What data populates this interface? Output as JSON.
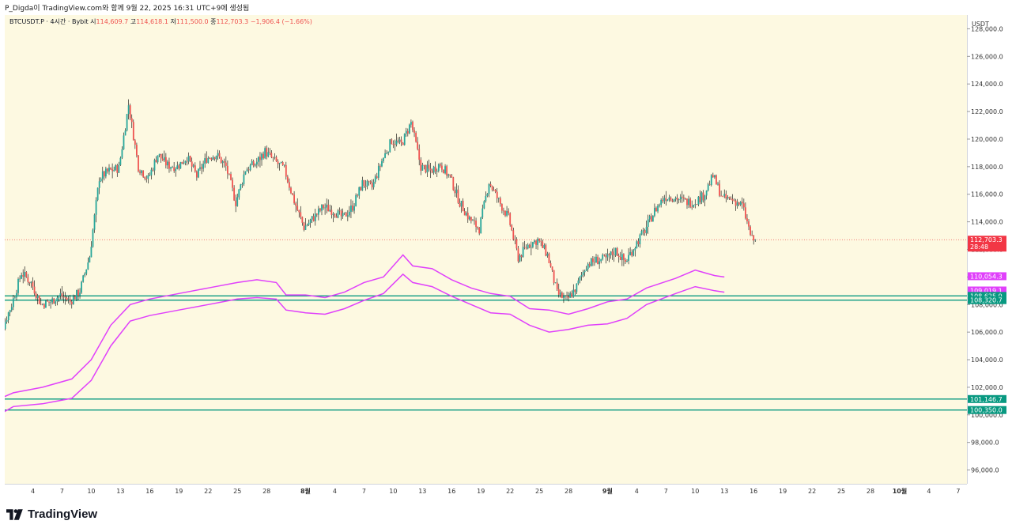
{
  "caption": "P_Digda이 TradingView.com와 함께 9월 22, 2025 16:31 UTC+9에 생성됨",
  "brand": {
    "logo_text": "TradingView",
    "logo_icon": "tradingview-logo-icon"
  },
  "colors": {
    "background": "#fdf9e1",
    "up": "#26a69a",
    "down": "#ef5350",
    "envelope": "#e040fb",
    "levels": "#089981",
    "price_tag": "#f23645"
  },
  "chart_data": {
    "type": "candlestick",
    "symbol": "BTCUSDT.P",
    "timeframe": "4시간",
    "exchange": "Bybit",
    "ohlc_legend": {
      "open_label": "시",
      "open": "114,609.7",
      "high_label": "고",
      "high": "114,618.1",
      "low_label": "저",
      "low": "111,500.0",
      "close_label": "종",
      "close": "112,703.3",
      "change": "−1,906.4 (−1.66%)"
    },
    "currency_label": "USDT",
    "ylim": [
      95000,
      129000
    ],
    "y_ticks": [
      "128,000.0",
      "126,000.0",
      "124,000.0",
      "122,000.0",
      "120,000.0",
      "118,000.0",
      "116,000.0",
      "114,000.0",
      "112,000.0",
      "110,000.0",
      "108,000.0",
      "106,000.0",
      "104,000.0",
      "102,000.0",
      "100,000.0",
      "98,000.0",
      "96,000.0"
    ],
    "x_ticks": [
      "4",
      "7",
      "10",
      "13",
      "16",
      "19",
      "22",
      "25",
      "28",
      "8월",
      "4",
      "7",
      "10",
      "13",
      "16",
      "19",
      "22",
      "25",
      "28",
      "9월",
      "4",
      "7",
      "10",
      "13",
      "16",
      "19",
      "22",
      "25",
      "28",
      "10월",
      "4",
      "7"
    ],
    "x_tick_days": [
      4,
      7,
      10,
      13,
      16,
      19,
      22,
      25,
      28,
      32,
      35,
      38,
      41,
      44,
      47,
      50,
      53,
      56,
      59,
      63,
      66,
      69,
      72,
      75,
      78,
      81,
      84,
      87,
      90,
      93,
      96,
      99
    ],
    "price_path": [
      [
        0,
        108300
      ],
      [
        1,
        106200
      ],
      [
        2,
        108000
      ],
      [
        3,
        110300
      ],
      [
        4,
        109600
      ],
      [
        5,
        108000
      ],
      [
        6,
        108200
      ],
      [
        7,
        108700
      ],
      [
        8,
        108200
      ],
      [
        9,
        109000
      ],
      [
        10,
        111500
      ],
      [
        11,
        117200
      ],
      [
        12,
        117700
      ],
      [
        13,
        117900
      ],
      [
        14,
        122500
      ],
      [
        15,
        118000
      ],
      [
        16,
        117100
      ],
      [
        17,
        118900
      ],
      [
        18,
        118100
      ],
      [
        19,
        118000
      ],
      [
        20,
        118700
      ],
      [
        21,
        117300
      ],
      [
        22,
        118600
      ],
      [
        23,
        118900
      ],
      [
        24,
        118000
      ],
      [
        25,
        115400
      ],
      [
        26,
        117800
      ],
      [
        27,
        118200
      ],
      [
        28,
        119100
      ],
      [
        29,
        118400
      ],
      [
        30,
        117800
      ],
      [
        31,
        115500
      ],
      [
        32,
        113600
      ],
      [
        33,
        114300
      ],
      [
        34,
        115100
      ],
      [
        35,
        114800
      ],
      [
        36,
        114300
      ],
      [
        37,
        115100
      ],
      [
        38,
        116800
      ],
      [
        39,
        116500
      ],
      [
        40,
        118400
      ],
      [
        41,
        119900
      ],
      [
        42,
        119600
      ],
      [
        43,
        121200
      ],
      [
        44,
        118000
      ],
      [
        45,
        117700
      ],
      [
        46,
        118200
      ],
      [
        47,
        117200
      ],
      [
        48,
        115400
      ],
      [
        49,
        114200
      ],
      [
        50,
        113500
      ],
      [
        51,
        116900
      ],
      [
        52,
        115500
      ],
      [
        53,
        114300
      ],
      [
        54,
        111400
      ],
      [
        55,
        112300
      ],
      [
        56,
        112700
      ],
      [
        57,
        111600
      ],
      [
        58,
        108800
      ],
      [
        59,
        108300
      ],
      [
        60,
        109300
      ],
      [
        61,
        110900
      ],
      [
        62,
        111200
      ],
      [
        63,
        111300
      ],
      [
        64,
        111900
      ],
      [
        65,
        111100
      ],
      [
        66,
        112300
      ],
      [
        67,
        113400
      ],
      [
        68,
        114800
      ],
      [
        69,
        115800
      ],
      [
        70,
        115800
      ],
      [
        71,
        115500
      ],
      [
        72,
        115400
      ],
      [
        73,
        115900
      ],
      [
        74,
        117300
      ],
      [
        75,
        115700
      ],
      [
        76,
        115600
      ],
      [
        77,
        115200
      ],
      [
        78,
        112700
      ]
    ],
    "envelope_upper": [
      [
        -1,
        100400
      ],
      [
        0,
        101000
      ],
      [
        2,
        101600
      ],
      [
        5,
        102000
      ],
      [
        8,
        102600
      ],
      [
        10,
        104000
      ],
      [
        12,
        106500
      ],
      [
        14,
        108000
      ],
      [
        16,
        108400
      ],
      [
        19,
        108800
      ],
      [
        22,
        109200
      ],
      [
        25,
        109600
      ],
      [
        27,
        109800
      ],
      [
        29,
        109600
      ],
      [
        30,
        108700
      ],
      [
        32,
        108700
      ],
      [
        34,
        108500
      ],
      [
        36,
        108900
      ],
      [
        38,
        109600
      ],
      [
        40,
        110000
      ],
      [
        42,
        111600
      ],
      [
        43,
        110800
      ],
      [
        45,
        110600
      ],
      [
        47,
        109800
      ],
      [
        49,
        109200
      ],
      [
        51,
        108800
      ],
      [
        53,
        108600
      ],
      [
        55,
        107700
      ],
      [
        57,
        107600
      ],
      [
        59,
        107300
      ],
      [
        61,
        107700
      ],
      [
        63,
        108200
      ],
      [
        65,
        108400
      ],
      [
        67,
        109200
      ],
      [
        70,
        109900
      ],
      [
        72,
        110500
      ],
      [
        74,
        110100
      ],
      [
        75,
        110000
      ]
    ],
    "envelope_lower": [
      [
        -1,
        99500
      ],
      [
        0,
        99800
      ],
      [
        2,
        100600
      ],
      [
        5,
        100800
      ],
      [
        8,
        101200
      ],
      [
        10,
        102500
      ],
      [
        12,
        105000
      ],
      [
        14,
        106800
      ],
      [
        16,
        107200
      ],
      [
        19,
        107600
      ],
      [
        22,
        108000
      ],
      [
        25,
        108400
      ],
      [
        27,
        108500
      ],
      [
        29,
        108400
      ],
      [
        30,
        107600
      ],
      [
        32,
        107400
      ],
      [
        34,
        107300
      ],
      [
        36,
        107700
      ],
      [
        38,
        108300
      ],
      [
        40,
        108800
      ],
      [
        42,
        110200
      ],
      [
        43,
        109600
      ],
      [
        45,
        109300
      ],
      [
        47,
        108600
      ],
      [
        49,
        108000
      ],
      [
        51,
        107400
      ],
      [
        53,
        107300
      ],
      [
        55,
        106500
      ],
      [
        57,
        106000
      ],
      [
        59,
        106200
      ],
      [
        61,
        106500
      ],
      [
        63,
        106600
      ],
      [
        65,
        107000
      ],
      [
        67,
        108000
      ],
      [
        70,
        108800
      ],
      [
        72,
        109300
      ],
      [
        74,
        109000
      ],
      [
        75,
        108900
      ]
    ],
    "last_bar_day": 78.2,
    "horizontal_levels": [
      {
        "value": "108,625.9",
        "price": 108625.9
      },
      {
        "value": "108,320.7",
        "price": 108320.7
      },
      {
        "value": "101,146.7",
        "price": 101146.7
      },
      {
        "value": "100,350.0",
        "price": 100350.0
      }
    ],
    "envelope_labels": [
      {
        "value": "110,054.3",
        "price": 110054.3
      },
      {
        "value": "109,019.1",
        "price": 109019.1
      }
    ],
    "last_price": {
      "value": "112,703.3",
      "countdown": "28:48",
      "price": 112703.3
    }
  }
}
